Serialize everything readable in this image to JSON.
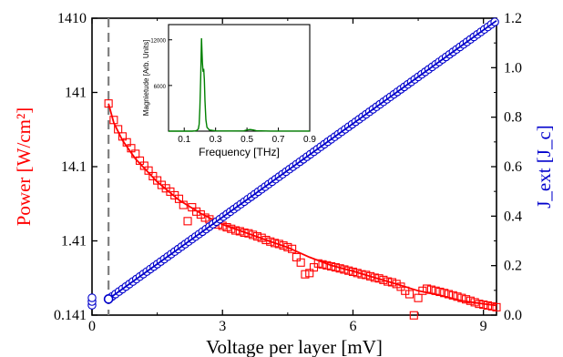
{
  "chart_data": [
    {
      "type": "scatter",
      "xlabel": "Voltage per layer [mV]",
      "xlim": [
        0,
        9.3
      ],
      "x_ticks": [
        0,
        3,
        6,
        9
      ],
      "y_left": {
        "label": "Power [W/cm²]",
        "scale": "log",
        "lim": [
          0.141,
          1410
        ],
        "ticks": [
          "0.141",
          "1.41",
          "14.1",
          "141",
          "1410"
        ],
        "color": "#ff0000"
      },
      "y_right": {
        "label": "J_ext [J_c]",
        "scale": "linear",
        "lim": [
          0.0,
          1.2
        ],
        "ticks": [
          "0.0",
          "0.2",
          "0.4",
          "0.6",
          "0.8",
          "1.0",
          "1.2"
        ],
        "color": "#0000cc"
      },
      "vline": {
        "x": 0.38,
        "style": "dashed",
        "color": "#808080"
      },
      "series": [
        {
          "axis": "left",
          "marker": "square",
          "color": "#ff0000",
          "points": [
            [
              0.38,
              100
            ],
            [
              0.5,
              60
            ],
            [
              0.6,
              45
            ],
            [
              0.7,
              36
            ],
            [
              0.8,
              30
            ],
            [
              0.9,
              25
            ],
            [
              1.0,
              21
            ],
            [
              1.1,
              17
            ],
            [
              1.2,
              14.5
            ],
            [
              1.3,
              12.5
            ],
            [
              1.4,
              10.5
            ],
            [
              1.5,
              9.2
            ],
            [
              1.6,
              8.0
            ],
            [
              1.7,
              7.2
            ],
            [
              1.8,
              6.5
            ],
            [
              1.9,
              5.8
            ],
            [
              2.0,
              5.2
            ],
            [
              2.1,
              4.3
            ],
            [
              2.2,
              2.6
            ],
            [
              2.3,
              4.0
            ],
            [
              2.4,
              3.5
            ],
            [
              2.5,
              3.2
            ],
            [
              2.6,
              2.9
            ],
            [
              2.7,
              2.75
            ],
            [
              2.8,
              2.5
            ],
            [
              2.9,
              2.35
            ],
            [
              3.0,
              2.25
            ],
            [
              3.1,
              2.15
            ],
            [
              3.2,
              2.05
            ],
            [
              3.3,
              1.95
            ],
            [
              3.4,
              1.9
            ],
            [
              3.5,
              1.82
            ],
            [
              3.6,
              1.78
            ],
            [
              3.7,
              1.7
            ],
            [
              3.8,
              1.62
            ],
            [
              3.9,
              1.55
            ],
            [
              4.0,
              1.45
            ],
            [
              4.1,
              1.38
            ],
            [
              4.2,
              1.32
            ],
            [
              4.3,
              1.28
            ],
            [
              4.4,
              1.22
            ],
            [
              4.5,
              1.16
            ],
            [
              4.6,
              1.1
            ],
            [
              4.7,
              0.85
            ],
            [
              4.8,
              0.72
            ],
            [
              4.9,
              0.5
            ],
            [
              5.0,
              0.52
            ],
            [
              5.1,
              0.62
            ],
            [
              5.2,
              0.7
            ],
            [
              5.3,
              0.68
            ],
            [
              5.4,
              0.66
            ],
            [
              5.5,
              0.64
            ],
            [
              5.6,
              0.62
            ],
            [
              5.7,
              0.6
            ],
            [
              5.8,
              0.58
            ],
            [
              5.9,
              0.56
            ],
            [
              6.0,
              0.54
            ],
            [
              6.1,
              0.52
            ],
            [
              6.2,
              0.5
            ],
            [
              6.3,
              0.49
            ],
            [
              6.4,
              0.47
            ],
            [
              6.5,
              0.45
            ],
            [
              6.6,
              0.44
            ],
            [
              6.7,
              0.42
            ],
            [
              6.8,
              0.4
            ],
            [
              6.9,
              0.39
            ],
            [
              7.0,
              0.37
            ],
            [
              7.1,
              0.34
            ],
            [
              7.2,
              0.3
            ],
            [
              7.3,
              0.27
            ],
            [
              7.4,
              0.14
            ],
            [
              7.5,
              0.24
            ],
            [
              7.6,
              0.3
            ],
            [
              7.7,
              0.32
            ],
            [
              7.8,
              0.31
            ],
            [
              7.9,
              0.3
            ],
            [
              8.0,
              0.29
            ],
            [
              8.1,
              0.28
            ],
            [
              8.2,
              0.27
            ],
            [
              8.3,
              0.26
            ],
            [
              8.4,
              0.25
            ],
            [
              8.5,
              0.24
            ],
            [
              8.6,
              0.23
            ],
            [
              8.7,
              0.22
            ],
            [
              8.8,
              0.21
            ],
            [
              8.9,
              0.2
            ],
            [
              9.0,
              0.195
            ],
            [
              9.1,
              0.19
            ],
            [
              9.2,
              0.185
            ],
            [
              9.3,
              0.18
            ]
          ]
        },
        {
          "axis": "left",
          "marker": "line",
          "color": "#ff0000",
          "points": [
            [
              0.38,
              100
            ],
            [
              0.5,
              55
            ],
            [
              0.7,
              32
            ],
            [
              1.0,
              18
            ],
            [
              1.5,
              8.8
            ],
            [
              2.0,
              5.0
            ],
            [
              2.5,
              3.3
            ],
            [
              3.0,
              2.35
            ],
            [
              3.5,
              1.85
            ],
            [
              4.0,
              1.45
            ],
            [
              4.5,
              1.15
            ],
            [
              5.0,
              0.85
            ],
            [
              5.5,
              0.66
            ],
            [
              6.0,
              0.55
            ],
            [
              6.5,
              0.45
            ],
            [
              7.0,
              0.37
            ],
            [
              7.5,
              0.3
            ],
            [
              8.0,
              0.26
            ],
            [
              8.5,
              0.22
            ],
            [
              9.0,
              0.2
            ],
            [
              9.3,
              0.19
            ]
          ]
        },
        {
          "axis": "right",
          "marker": "circle",
          "color": "#0000cc",
          "x_start": 0.38,
          "x_end": 9.3,
          "x_step": 0.08,
          "y_start": 0.065,
          "y_end": 1.19
        },
        {
          "axis": "right",
          "marker": "line",
          "color": "#0000cc",
          "points": [
            [
              0.38,
              0.065
            ],
            [
              9.3,
              1.19
            ]
          ]
        },
        {
          "axis": "right",
          "marker": "circle",
          "color": "#0000cc",
          "points": [
            [
              0.0,
              0.04
            ],
            [
              0.0,
              0.055
            ],
            [
              0.0,
              0.07
            ]
          ]
        },
        {
          "axis": "right",
          "marker": "circle",
          "color": "#0000cc",
          "open": true,
          "points": [
            [
              0.38,
              0.065
            ]
          ]
        }
      ]
    },
    {
      "type": "line",
      "role": "inset",
      "xlabel": "Frequency [THz]",
      "ylabel": "Magnietude [Arb. Units]",
      "xlim": [
        0.0,
        0.9
      ],
      "ylim": [
        0,
        14000
      ],
      "x_ticks": [
        "0.1",
        "0.3",
        "0.5",
        "0.7",
        "0.9"
      ],
      "y_ticks": [
        "6000",
        "12000"
      ],
      "series": [
        {
          "color": "#008000",
          "points": [
            [
              0.0,
              0
            ],
            [
              0.15,
              0
            ],
            [
              0.17,
              30
            ],
            [
              0.18,
              80
            ],
            [
              0.19,
              300
            ],
            [
              0.195,
              900
            ],
            [
              0.2,
              3000
            ],
            [
              0.205,
              7000
            ],
            [
              0.208,
              10000
            ],
            [
              0.21,
              12200
            ],
            [
              0.213,
              10500
            ],
            [
              0.216,
              9000
            ],
            [
              0.22,
              7800
            ],
            [
              0.224,
              8200
            ],
            [
              0.228,
              6800
            ],
            [
              0.232,
              4000
            ],
            [
              0.238,
              1500
            ],
            [
              0.245,
              500
            ],
            [
              0.26,
              150
            ],
            [
              0.3,
              40
            ],
            [
              0.4,
              20
            ],
            [
              0.48,
              40
            ],
            [
              0.5,
              150
            ],
            [
              0.52,
              220
            ],
            [
              0.54,
              150
            ],
            [
              0.56,
              50
            ],
            [
              0.65,
              15
            ],
            [
              0.8,
              10
            ],
            [
              0.9,
              8
            ]
          ]
        }
      ]
    }
  ]
}
